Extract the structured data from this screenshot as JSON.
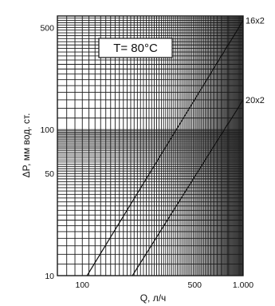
{
  "chart_data": {
    "type": "line",
    "xscale": "log",
    "yscale": "log",
    "xlim": [
      70,
      1000
    ],
    "ylim": [
      10,
      600
    ],
    "xlabel": "Q, л/ч",
    "ylabel": "ΔP, мм вод. ст.",
    "x_ticks": [
      {
        "value": 100,
        "label": "100"
      },
      {
        "value": 500,
        "label": "500"
      },
      {
        "value": 1000,
        "label": "1.000"
      }
    ],
    "y_ticks": [
      {
        "value": 10,
        "label": "10"
      },
      {
        "value": 50,
        "label": "50"
      },
      {
        "value": 100,
        "label": "100"
      },
      {
        "value": 500,
        "label": "500"
      }
    ],
    "grid": true,
    "annotation": "T= 80°C",
    "series": [
      {
        "name": "16x2",
        "x": [
          107,
          1000
        ],
        "y": [
          10,
          560
        ]
      },
      {
        "name": "20x2",
        "x": [
          205,
          1000
        ],
        "y": [
          10,
          160
        ]
      }
    ]
  },
  "colors": {
    "line": "#111111",
    "grid": "#1a1a1a",
    "background": "#ffffff"
  }
}
